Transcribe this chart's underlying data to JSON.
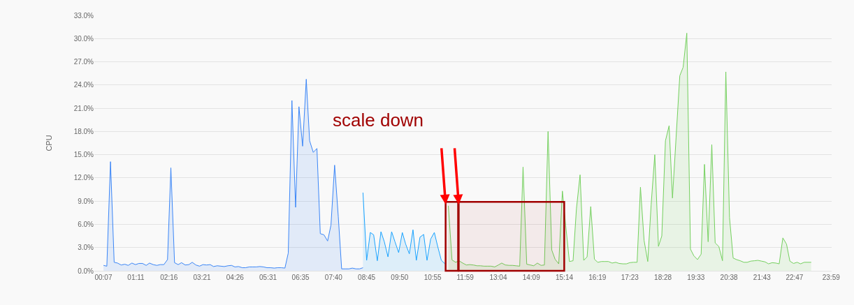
{
  "chart_data": {
    "type": "area",
    "ylabel": "CPU",
    "ylim": [
      0,
      33
    ],
    "yticks": [
      {
        "value": 0,
        "label": "0.0%"
      },
      {
        "value": 3,
        "label": "3.0%"
      },
      {
        "value": 6,
        "label": "6.0%"
      },
      {
        "value": 9,
        "label": "9.0%"
      },
      {
        "value": 12,
        "label": "12.0%"
      },
      {
        "value": 15,
        "label": "15.0%"
      },
      {
        "value": 18,
        "label": "18.0%"
      },
      {
        "value": 21,
        "label": "21.0%"
      },
      {
        "value": 24,
        "label": "24.0%"
      },
      {
        "value": 27,
        "label": "27.0%"
      },
      {
        "value": 30,
        "label": "30.0%"
      },
      {
        "value": 33,
        "label": "33.0%"
      }
    ],
    "xlim": [
      -0.18,
      24.0
    ],
    "xticks": [
      {
        "value": 0.117,
        "label": "00:07"
      },
      {
        "value": 1.183,
        "label": "01:11"
      },
      {
        "value": 2.267,
        "label": "02:16"
      },
      {
        "value": 3.35,
        "label": "03:21"
      },
      {
        "value": 4.433,
        "label": "04:26"
      },
      {
        "value": 5.517,
        "label": "05:31"
      },
      {
        "value": 6.583,
        "label": "06:35"
      },
      {
        "value": 7.667,
        "label": "07:40"
      },
      {
        "value": 8.75,
        "label": "08:45"
      },
      {
        "value": 9.833,
        "label": "09:50"
      },
      {
        "value": 10.917,
        "label": "10:55"
      },
      {
        "value": 11.983,
        "label": "11:59"
      },
      {
        "value": 13.067,
        "label": "13:04"
      },
      {
        "value": 14.15,
        "label": "14:09"
      },
      {
        "value": 15.233,
        "label": "15:14"
      },
      {
        "value": 16.317,
        "label": "16:19"
      },
      {
        "value": 17.383,
        "label": "17:23"
      },
      {
        "value": 18.467,
        "label": "18:28"
      },
      {
        "value": 19.55,
        "label": "19:33"
      },
      {
        "value": 20.633,
        "label": "20:38"
      },
      {
        "value": 21.717,
        "label": "21:43"
      },
      {
        "value": 22.783,
        "label": "22:47"
      },
      {
        "value": 23.983,
        "label": "23:59"
      }
    ],
    "grid": "y",
    "series": [
      {
        "color": "#3b86f7",
        "x": [
          0.12,
          0.23,
          0.35,
          0.47,
          0.58,
          0.7,
          0.82,
          0.93,
          1.05,
          1.17,
          1.28,
          1.4,
          1.52,
          1.63,
          1.75,
          1.87,
          1.98,
          2.1,
          2.22,
          2.33,
          2.45,
          2.57,
          2.68,
          2.8,
          2.92,
          3.03,
          3.15,
          3.27,
          3.38,
          3.5,
          3.62,
          3.73,
          3.85,
          3.97,
          4.08,
          4.2,
          4.32,
          4.43,
          4.55,
          4.67,
          4.78,
          4.9,
          5.02,
          5.13,
          5.25,
          5.37,
          5.48,
          5.6,
          5.72,
          5.83,
          5.95,
          6.07,
          6.18,
          6.3,
          6.42,
          6.53,
          6.65,
          6.77,
          6.88,
          7.0,
          7.12,
          7.23,
          7.35,
          7.47,
          7.58,
          7.7,
          7.82,
          7.93,
          8.05,
          8.17,
          8.28,
          8.4,
          8.52,
          8.63
        ],
        "values": [
          0.7,
          0.6,
          14.1,
          1.1,
          1.0,
          0.75,
          0.85,
          0.7,
          1.0,
          0.8,
          0.95,
          0.95,
          0.7,
          1.0,
          0.8,
          0.7,
          0.8,
          0.8,
          1.45,
          13.3,
          1.05,
          0.8,
          1.05,
          0.75,
          0.8,
          1.1,
          0.75,
          0.6,
          0.8,
          0.75,
          0.8,
          0.55,
          0.65,
          0.6,
          0.55,
          0.65,
          0.7,
          0.5,
          0.55,
          0.4,
          0.4,
          0.5,
          0.5,
          0.5,
          0.55,
          0.5,
          0.4,
          0.4,
          0.35,
          0.4,
          0.4,
          0.35,
          2.3,
          22.0,
          8.2,
          21.2,
          16.1,
          24.75,
          16.8,
          15.3,
          15.8,
          4.8,
          4.65,
          3.85,
          5.9,
          13.65,
          7.0,
          0.25,
          0.25,
          0.25,
          0.35,
          0.25,
          0.25,
          0.4
        ]
      },
      {
        "color": "#1aa3ff",
        "x": [
          8.63,
          8.75,
          8.87,
          8.98,
          9.1,
          9.22,
          9.33,
          9.45,
          9.57,
          9.68,
          9.8,
          9.92,
          10.03,
          10.15,
          10.27,
          10.38,
          10.5,
          10.62,
          10.73,
          10.85,
          10.97,
          11.08,
          11.2,
          11.32
        ],
        "values": [
          10.1,
          1.35,
          4.95,
          4.65,
          1.3,
          5.05,
          3.75,
          1.8,
          5.05,
          3.75,
          2.35,
          4.95,
          3.45,
          2.2,
          5.3,
          1.35,
          4.35,
          4.7,
          1.35,
          4.1,
          4.95,
          3.15,
          1.35,
          0.9
        ]
      },
      {
        "color": "#74d05e",
        "x": [
          11.43,
          11.55,
          11.67,
          11.78,
          11.9,
          12.02,
          12.13,
          12.25,
          12.37,
          12.48,
          12.6,
          12.72,
          12.83,
          12.95,
          13.07,
          13.18,
          13.3,
          13.42,
          13.53,
          13.65,
          13.77,
          13.88,
          14.0,
          14.12,
          14.23,
          14.35,
          14.47,
          14.58,
          14.7,
          14.82,
          14.93,
          15.05,
          15.17,
          15.28,
          15.4,
          15.52,
          15.63,
          15.75,
          15.87,
          15.98,
          16.1,
          16.22,
          16.33,
          16.45,
          16.57,
          16.68,
          16.8,
          16.92,
          17.03,
          17.15,
          17.27,
          17.38,
          17.5,
          17.62,
          17.73,
          17.85,
          17.97,
          18.08,
          18.2,
          18.32,
          18.43,
          18.55,
          18.67,
          18.78,
          18.9,
          19.02,
          19.13,
          19.25,
          19.37,
          19.48,
          19.6,
          19.72,
          19.83,
          19.95,
          20.07,
          20.18,
          20.3,
          20.42,
          20.53,
          20.65,
          20.77,
          20.88,
          21.0,
          21.12,
          21.23,
          21.35,
          21.47,
          21.58,
          21.7,
          21.82,
          21.93,
          22.05,
          22.17,
          22.28,
          22.4,
          22.52,
          22.63,
          22.75,
          22.87,
          22.98,
          23.1,
          23.22,
          23.33
        ],
        "values": [
          8.4,
          1.4,
          1.1,
          1.3,
          1.0,
          0.75,
          0.8,
          0.75,
          0.65,
          0.65,
          0.6,
          0.6,
          0.6,
          0.5,
          0.75,
          1.0,
          0.75,
          0.7,
          0.7,
          0.65,
          0.6,
          13.4,
          0.85,
          0.75,
          0.65,
          1.0,
          0.7,
          0.75,
          18.0,
          2.7,
          1.5,
          0.9,
          10.3,
          5.8,
          1.2,
          1.3,
          8.0,
          12.4,
          1.35,
          1.8,
          8.3,
          1.5,
          1.1,
          1.2,
          1.2,
          1.2,
          1.0,
          1.1,
          0.95,
          0.9,
          0.9,
          1.05,
          1.1,
          1.1,
          10.8,
          3.9,
          1.2,
          8.5,
          15.0,
          3.15,
          4.5,
          16.8,
          18.75,
          9.4,
          17.3,
          25.2,
          26.3,
          30.7,
          2.8,
          1.95,
          1.45,
          2.15,
          13.75,
          3.75,
          16.3,
          3.6,
          3.15,
          1.3,
          25.7,
          6.9,
          1.65,
          1.45,
          1.3,
          1.1,
          1.1,
          1.25,
          1.3,
          1.35,
          1.25,
          1.15,
          0.9,
          1.05,
          1.0,
          0.9,
          4.25,
          3.45,
          1.25,
          0.95,
          1.1,
          0.9,
          1.1,
          1.1,
          1.1
        ]
      }
    ],
    "bands": [
      {
        "axis": "x",
        "from": 11.34,
        "to": 11.75,
        "color": "#a00000"
      },
      {
        "axis": "x",
        "from": 11.77,
        "to": 15.23,
        "color": "#a00000"
      }
    ],
    "annotations": [
      "scale down"
    ]
  }
}
